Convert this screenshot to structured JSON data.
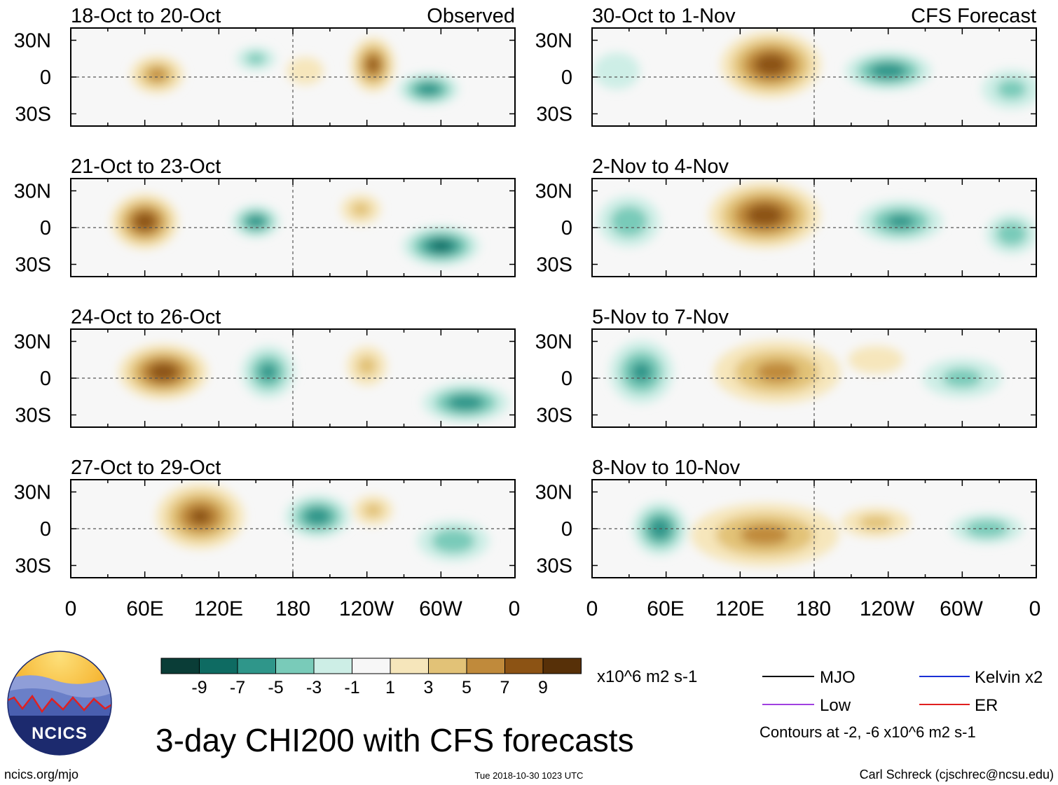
{
  "figure": {
    "title": "3-day CHI200 with CFS forecasts",
    "column_labels": [
      "Observed",
      "CFS Forecast"
    ],
    "footer_left": "ncics.org/mjo",
    "footer_center": "Tue 2018-10-30 1023 UTC",
    "footer_right": "Carl Schreck (cjschrec@ncsu.edu)",
    "logo_text": "NCICS"
  },
  "chart_data": {
    "type": "heatmap",
    "variable": "3-day CHI200 anomaly",
    "units": "x10^6 m2 s-1",
    "x_ticks": [
      "0",
      "60E",
      "120E",
      "180",
      "120W",
      "60W",
      "0"
    ],
    "y_ticks": [
      "30N",
      "0",
      "30S"
    ],
    "xlim_deg_east": [
      0,
      360
    ],
    "ylim_deg": [
      -40,
      40
    ],
    "panels": [
      {
        "period": "18-Oct to 20-Oct",
        "source": "Observed",
        "column": 0,
        "row": 0,
        "blobs": [
          {
            "lon": 70,
            "lat": 2,
            "value": 6,
            "rx": 25,
            "ry": 18
          },
          {
            "lon": 245,
            "lat": 10,
            "value": 8,
            "rx": 20,
            "ry": 25
          },
          {
            "lon": 290,
            "lat": -10,
            "value": -7,
            "rx": 28,
            "ry": 15
          },
          {
            "lon": 150,
            "lat": 15,
            "value": -4,
            "rx": 20,
            "ry": 12
          },
          {
            "lon": 190,
            "lat": 5,
            "value": 3,
            "rx": 20,
            "ry": 15
          }
        ]
      },
      {
        "period": "21-Oct to 23-Oct",
        "source": "Observed",
        "column": 0,
        "row": 1,
        "blobs": [
          {
            "lon": 60,
            "lat": 5,
            "value": 9,
            "rx": 30,
            "ry": 25
          },
          {
            "lon": 150,
            "lat": 5,
            "value": -7,
            "rx": 22,
            "ry": 15
          },
          {
            "lon": 300,
            "lat": -15,
            "value": -8,
            "rx": 35,
            "ry": 18
          },
          {
            "lon": 235,
            "lat": 15,
            "value": 4,
            "rx": 20,
            "ry": 15
          }
        ]
      },
      {
        "period": "24-Oct to 26-Oct",
        "source": "Observed",
        "column": 0,
        "row": 2,
        "blobs": [
          {
            "lon": 75,
            "lat": 5,
            "value": 9,
            "rx": 40,
            "ry": 25
          },
          {
            "lon": 160,
            "lat": 5,
            "value": -6,
            "rx": 25,
            "ry": 25
          },
          {
            "lon": 320,
            "lat": -20,
            "value": -7,
            "rx": 40,
            "ry": 18
          },
          {
            "lon": 240,
            "lat": 10,
            "value": 4,
            "rx": 20,
            "ry": 20
          }
        ]
      },
      {
        "period": "27-Oct to 29-Oct",
        "source": "Observed",
        "column": 0,
        "row": 3,
        "blobs": [
          {
            "lon": 105,
            "lat": 10,
            "value": 8,
            "rx": 40,
            "ry": 30
          },
          {
            "lon": 200,
            "lat": 10,
            "value": -7,
            "rx": 30,
            "ry": 20
          },
          {
            "lon": 245,
            "lat": 15,
            "value": 4,
            "rx": 20,
            "ry": 15
          },
          {
            "lon": 310,
            "lat": -10,
            "value": -5,
            "rx": 35,
            "ry": 20
          }
        ]
      },
      {
        "period": "30-Oct to 1-Nov",
        "source": "CFS Forecast",
        "column": 1,
        "row": 0,
        "blobs": [
          {
            "lon": 145,
            "lat": 10,
            "value": 9,
            "rx": 45,
            "ry": 30
          },
          {
            "lon": 240,
            "lat": 5,
            "value": -7,
            "rx": 40,
            "ry": 18
          },
          {
            "lon": 340,
            "lat": -10,
            "value": -4,
            "rx": 30,
            "ry": 20
          },
          {
            "lon": 20,
            "lat": 5,
            "value": -3,
            "rx": 25,
            "ry": 20
          }
        ]
      },
      {
        "period": "2-Nov to 4-Nov",
        "source": "CFS Forecast",
        "column": 1,
        "row": 1,
        "blobs": [
          {
            "lon": 140,
            "lat": 10,
            "value": 9,
            "rx": 50,
            "ry": 30
          },
          {
            "lon": 250,
            "lat": 5,
            "value": -6,
            "rx": 40,
            "ry": 20
          },
          {
            "lon": 30,
            "lat": 5,
            "value": -5,
            "rx": 30,
            "ry": 25
          },
          {
            "lon": 340,
            "lat": -5,
            "value": -5,
            "rx": 25,
            "ry": 20
          }
        ]
      },
      {
        "period": "5-Nov to 7-Nov",
        "source": "CFS Forecast",
        "column": 1,
        "row": 2,
        "blobs": [
          {
            "lon": 150,
            "lat": 5,
            "value": 6,
            "rx": 60,
            "ry": 30
          },
          {
            "lon": 40,
            "lat": 5,
            "value": -6,
            "rx": 30,
            "ry": 30
          },
          {
            "lon": 300,
            "lat": 0,
            "value": -4,
            "rx": 40,
            "ry": 20
          },
          {
            "lon": 230,
            "lat": 15,
            "value": 3,
            "rx": 30,
            "ry": 15
          }
        ]
      },
      {
        "period": "8-Nov to 10-Nov",
        "source": "CFS Forecast",
        "column": 1,
        "row": 3,
        "blobs": [
          {
            "lon": 140,
            "lat": -5,
            "value": 6,
            "rx": 70,
            "ry": 30
          },
          {
            "lon": 55,
            "lat": 0,
            "value": -7,
            "rx": 25,
            "ry": 25
          },
          {
            "lon": 320,
            "lat": 0,
            "value": -5,
            "rx": 35,
            "ry": 15
          },
          {
            "lon": 230,
            "lat": 5,
            "value": 4,
            "rx": 35,
            "ry": 15
          }
        ]
      }
    ],
    "colorbar": {
      "labels": [
        "-9",
        "-7",
        "-5",
        "-3",
        "-1",
        "1",
        "3",
        "5",
        "7",
        "9"
      ],
      "colors": [
        "#0a3d37",
        "#0e6b62",
        "#2f968a",
        "#79cbb9",
        "#cdeee6",
        "#f7f7f7",
        "#f6e6bb",
        "#e2c277",
        "#c08a3b",
        "#8c5314",
        "#573008"
      ],
      "units_label": "x10^6 m2 s-1"
    },
    "legend": [
      {
        "label": "MJO",
        "color": "#000000"
      },
      {
        "label": "Kelvin x2",
        "color": "#1a2fd6"
      },
      {
        "label": "Low",
        "color": "#a040e0"
      },
      {
        "label": "ER",
        "color": "#e01f1f"
      }
    ],
    "contour_note": "Contours at -2, -6 x10^6 m2 s-1"
  }
}
